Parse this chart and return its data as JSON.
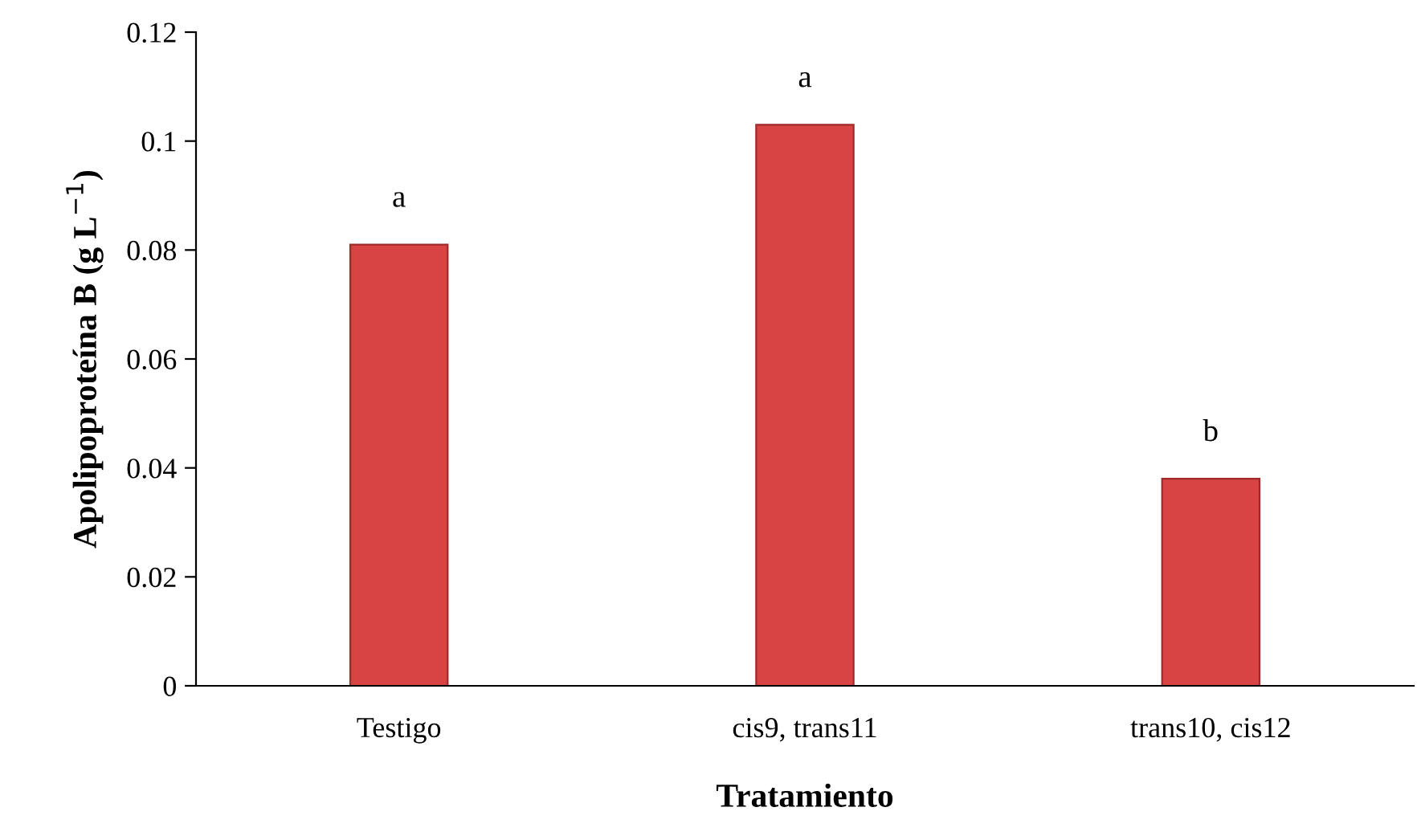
{
  "chart_data": {
    "type": "bar",
    "xlabel": "Tratamiento",
    "ylabel": "Apolipoproteína B (g L$^{−1}$)",
    "categories": [
      "Testigo",
      "cis9, trans11",
      "trans10, cis12"
    ],
    "values": [
      0.081,
      0.103,
      0.038
    ],
    "color": "#d84444",
    "ylim": [
      0,
      0.12
    ],
    "yticks": [
      0,
      0.02,
      0.04,
      0.06,
      0.08,
      {
        "value": 0.1,
        "label": "0.1"
      },
      0.12
    ],
    "grid": false,
    "annotations": [
      {
        "text": "a",
        "x": "Testigo",
        "y": 0.081
      },
      {
        "text": "a",
        "x": "cis9, trans11",
        "y": 0.103
      },
      {
        "text": "b",
        "x": "trans10, cis12",
        "y": 0.038
      }
    ]
  }
}
